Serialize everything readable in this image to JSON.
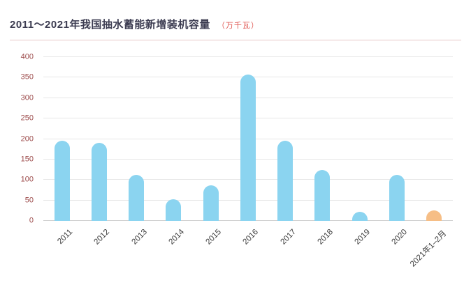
{
  "header": {
    "title": "2011～2021年我国抽水蓄能新增装机容量",
    "unit": "（万千瓦）"
  },
  "chart_data": {
    "type": "bar",
    "title": "2011～2021年我国抽水蓄能新增装机容量",
    "unit_label": "（万千瓦）",
    "categories": [
      "2011",
      "2012",
      "2013",
      "2014",
      "2015",
      "2016",
      "2017",
      "2018",
      "2019",
      "2020",
      "2021年1–2月"
    ],
    "values": [
      195,
      190,
      113,
      53,
      87,
      357,
      196,
      125,
      23,
      113,
      25
    ],
    "ylim": [
      0,
      400
    ],
    "ytick_step": 50,
    "grid": "horizontal",
    "legend": "none",
    "bar_color": "#8bd4f0",
    "highlight_color": "#f6be86",
    "highlight_index": 10,
    "y_tick_color": "#9c4a4a",
    "x_tick_color": "#3c3c3c",
    "title_color": "#3d3d52",
    "unit_color": "#e05a55"
  }
}
